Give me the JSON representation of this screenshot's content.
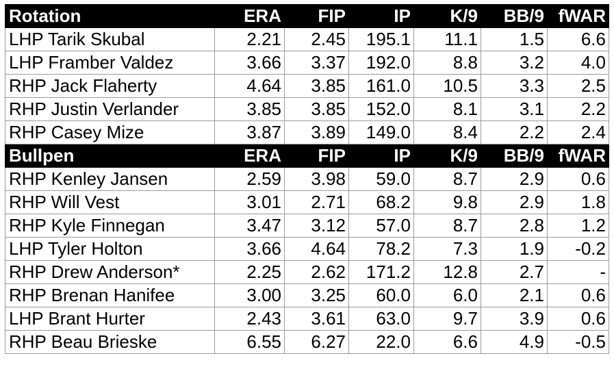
{
  "columns": [
    "ERA",
    "FIP",
    "IP",
    "K/9",
    "BB/9",
    "fWAR"
  ],
  "sections": [
    {
      "title": "Rotation",
      "rows": [
        [
          "LHP Tarik Skubal",
          "2.21",
          "2.45",
          "195.1",
          "11.1",
          "1.5",
          "6.6"
        ],
        [
          "LHP Framber Valdez",
          "3.66",
          "3.37",
          "192.0",
          "8.8",
          "3.2",
          "4.0"
        ],
        [
          "RHP Jack Flaherty",
          "4.64",
          "3.85",
          "161.0",
          "10.5",
          "3.3",
          "2.5"
        ],
        [
          "RHP Justin Verlander",
          "3.85",
          "3.85",
          "152.0",
          "8.1",
          "3.1",
          "2.2"
        ],
        [
          "RHP Casey Mize",
          "3.87",
          "3.89",
          "149.0",
          "8.4",
          "2.2",
          "2.4"
        ]
      ]
    },
    {
      "title": "Bullpen",
      "rows": [
        [
          "RHP Kenley Jansen",
          "2.59",
          "3.98",
          "59.0",
          "8.7",
          "2.9",
          "0.6"
        ],
        [
          "RHP Will Vest",
          "3.01",
          "2.71",
          "68.2",
          "9.8",
          "2.9",
          "1.8"
        ],
        [
          "RHP Kyle Finnegan",
          "3.47",
          "3.12",
          "57.0",
          "8.7",
          "2.8",
          "1.2"
        ],
        [
          "LHP Tyler Holton",
          "3.66",
          "4.64",
          "78.2",
          "7.3",
          "1.9",
          "-0.2"
        ],
        [
          "RHP Drew Anderson*",
          "2.25",
          "2.62",
          "171.2",
          "12.8",
          "2.7",
          "-"
        ],
        [
          "RHP Brenan Hanifee",
          "3.00",
          "3.25",
          "60.0",
          "6.0",
          "2.1",
          "0.6"
        ],
        [
          "LHP Brant Hurter",
          "2.43",
          "3.61",
          "63.0",
          "9.7",
          "3.9",
          "0.6"
        ],
        [
          "RHP Beau Brieske",
          "6.55",
          "6.27",
          "22.0",
          "6.6",
          "4.9",
          "-0.5"
        ]
      ]
    }
  ]
}
